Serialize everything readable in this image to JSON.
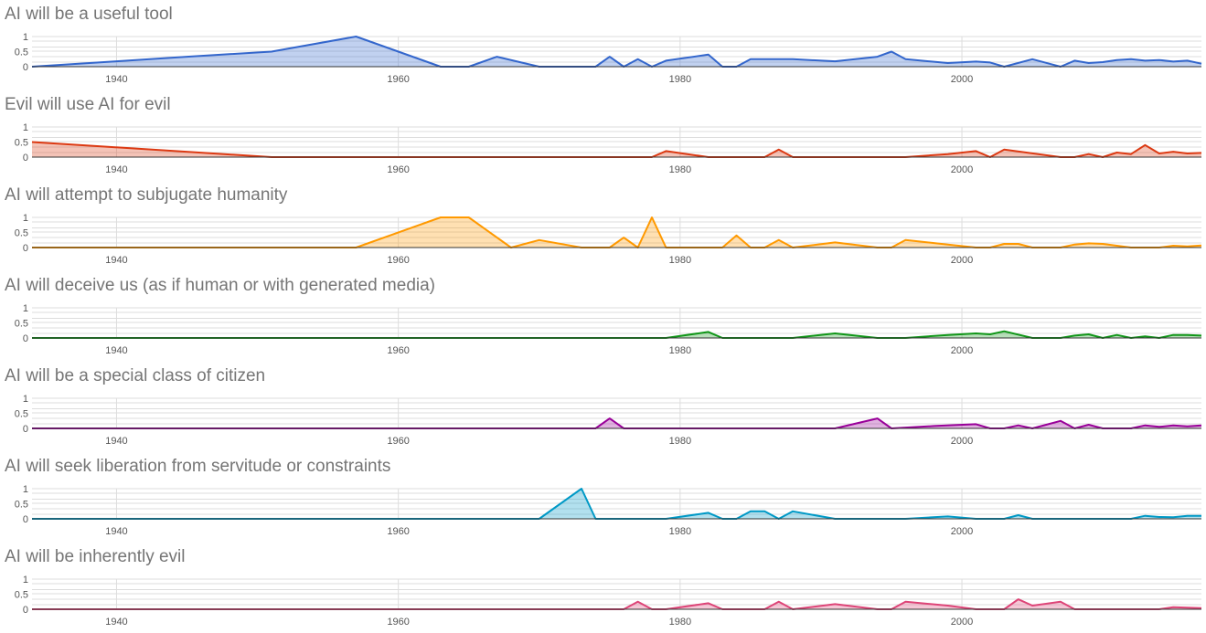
{
  "chart_data": [
    {
      "type": "area",
      "title": "AI will be a useful tool",
      "color": "#3366cc",
      "ylim": [
        0,
        1
      ],
      "yticks": [
        "1",
        "0.5",
        "0"
      ],
      "xticks": [
        1940,
        1960,
        1980,
        2000
      ],
      "xlim": [
        1934,
        2017
      ],
      "x": [
        1934,
        1940,
        1945,
        1951,
        1957,
        1963,
        1965,
        1967,
        1970,
        1974,
        1975,
        1976,
        1977,
        1978,
        1979,
        1982,
        1983,
        1984,
        1985,
        1988,
        1991,
        1994,
        1995,
        1996,
        1999,
        2001,
        2002,
        2003,
        2005,
        2007,
        2008,
        2009,
        2010,
        2011,
        2012,
        2013,
        2014,
        2015,
        2016,
        2017
      ],
      "values": [
        0,
        0.18,
        0.33,
        0.5,
        1,
        0,
        0,
        0.33,
        0,
        0,
        0.33,
        0,
        0.25,
        0,
        0.2,
        0.4,
        0,
        0,
        0.25,
        0.25,
        0.18,
        0.33,
        0.5,
        0.25,
        0.12,
        0.17,
        0.14,
        0,
        0.25,
        0,
        0.2,
        0.12,
        0.15,
        0.22,
        0.25,
        0.2,
        0.22,
        0.17,
        0.2,
        0.1
      ]
    },
    {
      "type": "area",
      "title": "Evil will use AI for evil",
      "color": "#dc3912",
      "ylim": [
        0,
        1
      ],
      "yticks": [
        "1",
        "0.5",
        "0"
      ],
      "xticks": [
        1940,
        1960,
        1980,
        2000
      ],
      "xlim": [
        1934,
        2017
      ],
      "x": [
        1934,
        1951,
        1978,
        1979,
        1982,
        1986,
        1987,
        1988,
        1996,
        1999,
        2001,
        2002,
        2003,
        2007,
        2008,
        2009,
        2010,
        2011,
        2012,
        2013,
        2014,
        2015,
        2016,
        2017
      ],
      "values": [
        0.5,
        0,
        0,
        0.2,
        0,
        0,
        0.25,
        0,
        0,
        0.1,
        0.2,
        0,
        0.25,
        0,
        0,
        0.1,
        0,
        0.15,
        0.1,
        0.4,
        0.12,
        0.18,
        0.12,
        0.14
      ]
    },
    {
      "type": "area",
      "title": "AI will attempt to subjugate humanity",
      "color": "#ff9900",
      "ylim": [
        0,
        1
      ],
      "yticks": [
        "1",
        "0.5",
        "0"
      ],
      "xticks": [
        1940,
        1960,
        1980,
        2000
      ],
      "xlim": [
        1934,
        2017
      ],
      "x": [
        1934,
        1957,
        1963,
        1965,
        1968,
        1970,
        1973,
        1975,
        1976,
        1977,
        1978,
        1979,
        1983,
        1984,
        1985,
        1986,
        1987,
        1988,
        1991,
        1994,
        1995,
        1996,
        1999,
        2001,
        2002,
        2003,
        2004,
        2005,
        2007,
        2008,
        2009,
        2010,
        2012,
        2014,
        2015,
        2016,
        2017
      ],
      "values": [
        0,
        0,
        1,
        1,
        0,
        0.25,
        0,
        0,
        0.33,
        0,
        1,
        0,
        0,
        0.4,
        0,
        0,
        0.25,
        0,
        0.17,
        0,
        0,
        0.25,
        0.1,
        0,
        0,
        0.12,
        0.12,
        0,
        0,
        0.1,
        0.14,
        0.12,
        0,
        0,
        0.06,
        0.04,
        0.07
      ]
    },
    {
      "type": "area",
      "title": "AI will deceive us (as if human or with generated media)",
      "color": "#109618",
      "ylim": [
        0,
        1
      ],
      "yticks": [
        "1",
        "0.5",
        "0"
      ],
      "xticks": [
        1940,
        1960,
        1980,
        2000
      ],
      "xlim": [
        1934,
        2017
      ],
      "x": [
        1934,
        1979,
        1982,
        1983,
        1988,
        1991,
        1994,
        1996,
        1999,
        2001,
        2002,
        2003,
        2005,
        2007,
        2008,
        2009,
        2010,
        2011,
        2012,
        2013,
        2014,
        2015,
        2016,
        2017
      ],
      "values": [
        0,
        0,
        0.2,
        0,
        0,
        0.15,
        0,
        0,
        0.1,
        0.15,
        0.12,
        0.22,
        0,
        0,
        0.08,
        0.12,
        0,
        0.1,
        0,
        0.05,
        0,
        0.1,
        0.1,
        0.08
      ]
    },
    {
      "type": "area",
      "title": "AI will be a special class of citizen",
      "color": "#990099",
      "ylim": [
        0,
        1
      ],
      "yticks": [
        "1",
        "0.5",
        "0"
      ],
      "xticks": [
        1940,
        1960,
        1980,
        2000
      ],
      "xlim": [
        1934,
        2017
      ],
      "x": [
        1934,
        1974,
        1975,
        1976,
        1991,
        1994,
        1995,
        1998,
        2001,
        2002,
        2003,
        2004,
        2005,
        2007,
        2008,
        2009,
        2010,
        2011,
        2012,
        2013,
        2014,
        2015,
        2016,
        2017
      ],
      "values": [
        0,
        0,
        0.33,
        0,
        0,
        0.33,
        0,
        0.08,
        0.14,
        0,
        0,
        0.1,
        0,
        0.25,
        0,
        0.12,
        0,
        0,
        0,
        0.1,
        0.05,
        0.1,
        0.07,
        0.1
      ]
    },
    {
      "type": "area",
      "title": "AI will seek liberation from servitude or constraints",
      "color": "#0099c6",
      "ylim": [
        0,
        1
      ],
      "yticks": [
        "1",
        "0.5",
        "0"
      ],
      "xticks": [
        1940,
        1960,
        1980,
        2000
      ],
      "xlim": [
        1934,
        2017
      ],
      "x": [
        1934,
        1970,
        1973,
        1974,
        1979,
        1982,
        1983,
        1984,
        1985,
        1986,
        1987,
        1988,
        1991,
        1996,
        1999,
        2001,
        2002,
        2003,
        2004,
        2005,
        2012,
        2013,
        2014,
        2015,
        2016,
        2017
      ],
      "values": [
        0,
        0,
        1,
        0,
        0,
        0.2,
        0,
        0,
        0.25,
        0.25,
        0,
        0.25,
        0,
        0,
        0.08,
        0,
        0,
        0,
        0.12,
        0,
        0,
        0.1,
        0.06,
        0.05,
        0.1,
        0.1
      ]
    },
    {
      "type": "area",
      "title": "AI will be inherently evil",
      "color": "#dd4477",
      "ylim": [
        0,
        1
      ],
      "yticks": [
        "1",
        "0.5",
        "0"
      ],
      "xticks": [
        1940,
        1960,
        1980,
        2000
      ],
      "xlim": [
        1934,
        2017
      ],
      "x": [
        1934,
        1976,
        1977,
        1978,
        1979,
        1982,
        1983,
        1986,
        1987,
        1988,
        1991,
        1994,
        1995,
        1996,
        1999,
        2001,
        2002,
        2003,
        2004,
        2005,
        2007,
        2008,
        2012,
        2014,
        2015,
        2016,
        2017
      ],
      "values": [
        0,
        0,
        0.25,
        0,
        0,
        0.2,
        0,
        0,
        0.25,
        0,
        0.17,
        0,
        0,
        0.25,
        0.12,
        0,
        0,
        0,
        0.33,
        0.12,
        0.25,
        0,
        0,
        0,
        0.07,
        0.05,
        0.04
      ]
    }
  ]
}
